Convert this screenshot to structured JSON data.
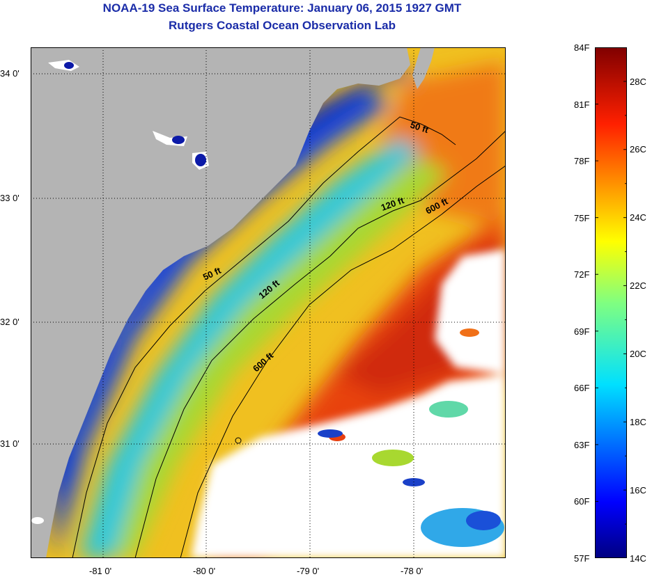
{
  "header": {
    "title": "NOAA-19 Sea Surface Temperature:  January 06, 2015 1927 GMT",
    "subtitle": "Rutgers Coastal Ocean Observation Lab"
  },
  "map": {
    "lon_labels": [
      "-81 0'",
      "-80 0'",
      "-79 0'",
      "-78 0'"
    ],
    "lat_labels": [
      "34 0'",
      "33 0'",
      "32 0'",
      "31 0'"
    ],
    "lon_range": [
      -81.7,
      -77.2
    ],
    "lat_range": [
      30.2,
      34.2
    ],
    "grid": "dotted",
    "isobaths": [
      {
        "label": "50 ft"
      },
      {
        "label": "120 ft"
      },
      {
        "label": "600 ft"
      },
      {
        "label": "50 ft"
      },
      {
        "label": "120 ft"
      },
      {
        "label": "600 ft"
      }
    ],
    "colors": {
      "land": "#b4b4b4",
      "cloud": "#ffffff",
      "cold": "#0a1a9a",
      "warm": "#e83a10"
    }
  },
  "colorbar": {
    "fahrenheit": [
      "84F",
      "81F",
      "78F",
      "75F",
      "72F",
      "69F",
      "66F",
      "63F",
      "60F",
      "57F"
    ],
    "celsius": [
      "28C",
      "26C",
      "24C",
      "22C",
      "20C",
      "18C",
      "16C",
      "14C"
    ],
    "range_f": [
      57,
      84
    ],
    "range_c": [
      14,
      29
    ]
  }
}
